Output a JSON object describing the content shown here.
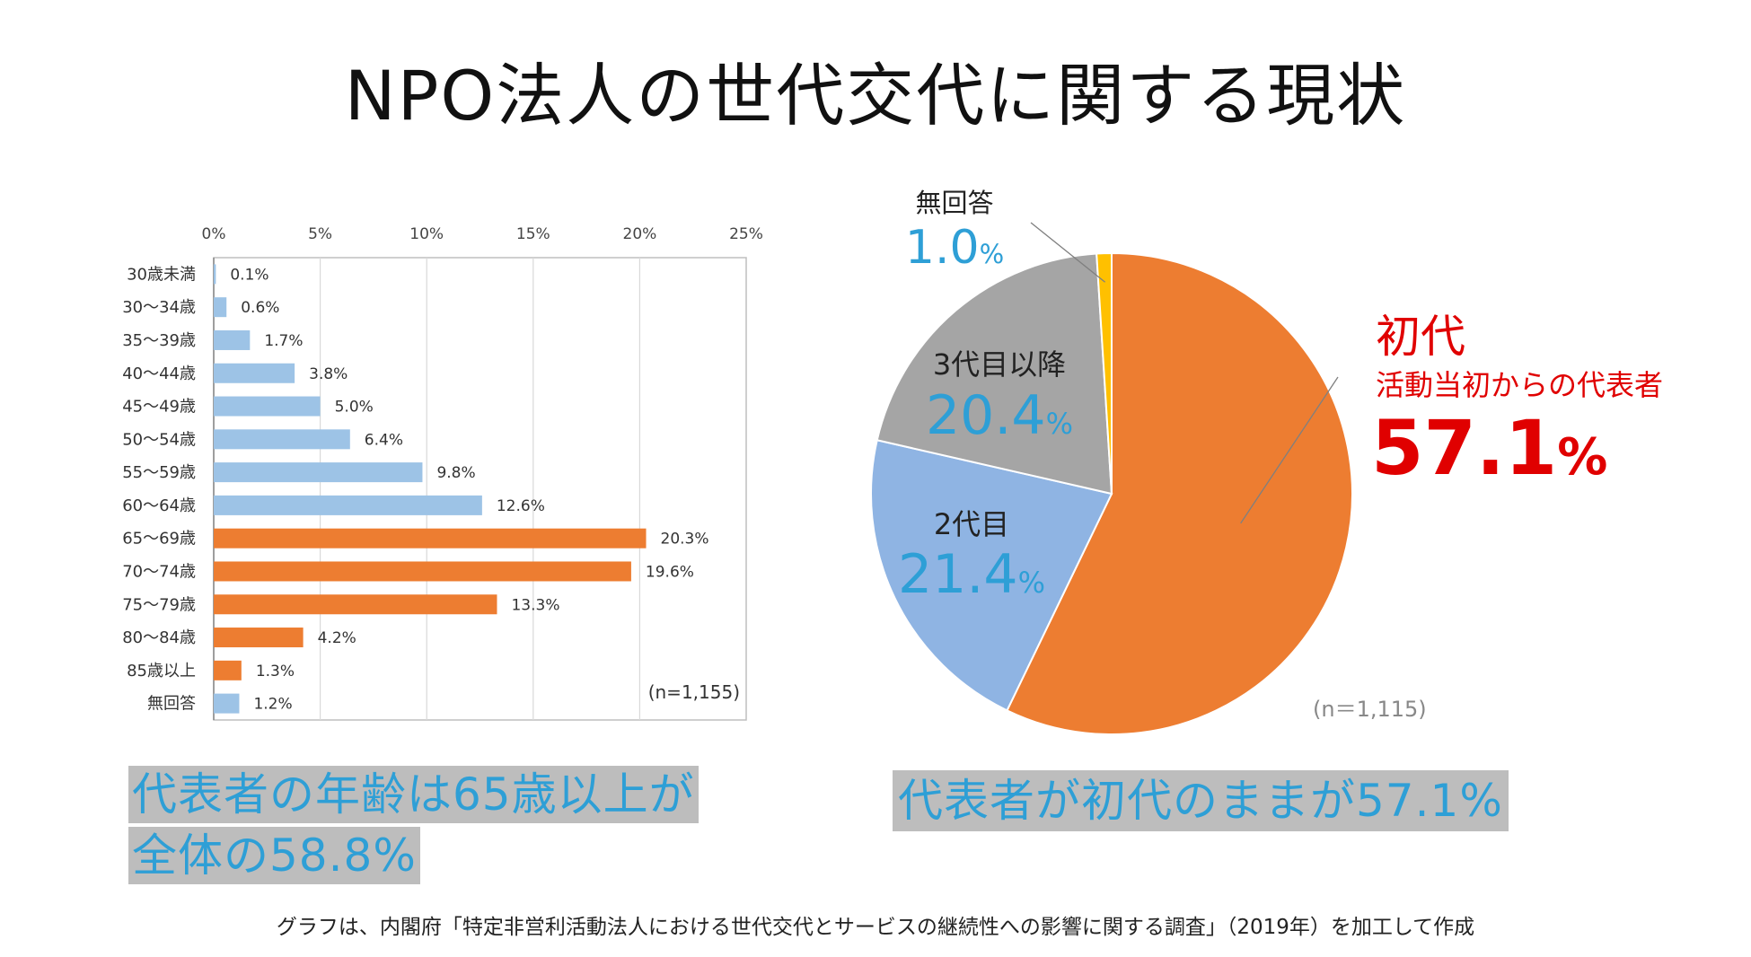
{
  "title": "NPO法人の世代交代に関する現状",
  "colors": {
    "blue_bar": "#9dc3e6",
    "orange": "#ed7d31",
    "gray": "#a5a5a5",
    "light_blue": "#8fb4e3",
    "yellow": "#ffc000",
    "cyan_text": "#2e9fd6",
    "red_text": "#e00000"
  },
  "chart_data": [
    {
      "type": "bar",
      "orientation": "horizontal",
      "x_ticks": [
        "0%",
        "5%",
        "10%",
        "15%",
        "20%",
        "25%"
      ],
      "xlim": [
        0,
        25
      ],
      "grid": true,
      "categories": [
        "30歳未満",
        "30～34歳",
        "35～39歳",
        "40～44歳",
        "45～49歳",
        "50～54歳",
        "55～59歳",
        "60～64歳",
        "65～69歳",
        "70～74歳",
        "75～79歳",
        "80～84歳",
        "85歳以上",
        "無回答"
      ],
      "values": [
        0.1,
        0.6,
        1.7,
        3.8,
        5.0,
        6.4,
        9.8,
        12.6,
        20.3,
        19.6,
        13.3,
        4.2,
        1.3,
        1.2
      ],
      "value_labels": [
        "0.1%",
        "0.6%",
        "1.7%",
        "3.8%",
        "5.0%",
        "6.4%",
        "9.8%",
        "12.6%",
        "20.3%",
        "19.6%",
        "13.3%",
        "4.2%",
        "1.3%",
        "1.2%"
      ],
      "highlight": [
        false,
        false,
        false,
        false,
        false,
        false,
        false,
        false,
        true,
        true,
        true,
        true,
        true,
        false
      ],
      "sample_note": "(n=1,155)"
    },
    {
      "type": "pie",
      "slices": [
        {
          "name": "初代",
          "value": 57.1,
          "value_label": "57.1",
          "pct": "%",
          "subtitle": "活動当初からの代表者",
          "color": "#ed7d31"
        },
        {
          "name": "2代目",
          "value": 21.4,
          "value_label": "21.4",
          "pct": "%",
          "color": "#8fb4e3"
        },
        {
          "name": "3代目以降",
          "value": 20.4,
          "value_label": "20.4",
          "pct": "%",
          "color": "#a5a5a5"
        },
        {
          "name": "無回答",
          "value": 1.0,
          "value_label": "1.0",
          "pct": "%",
          "color": "#ffc000"
        }
      ],
      "sample_note": "(n＝1,115)"
    }
  ],
  "summary_left_line1": "代表者の年齢は65歳以上が",
  "summary_left_line2": "全体の58.8%",
  "summary_right": "代表者が初代のままが57.1%",
  "footnote": "グラフは、内閣府「特定非営利活動法人における世代交代とサービスの継続性への影響に関する調査」（2019年）を加工して作成"
}
